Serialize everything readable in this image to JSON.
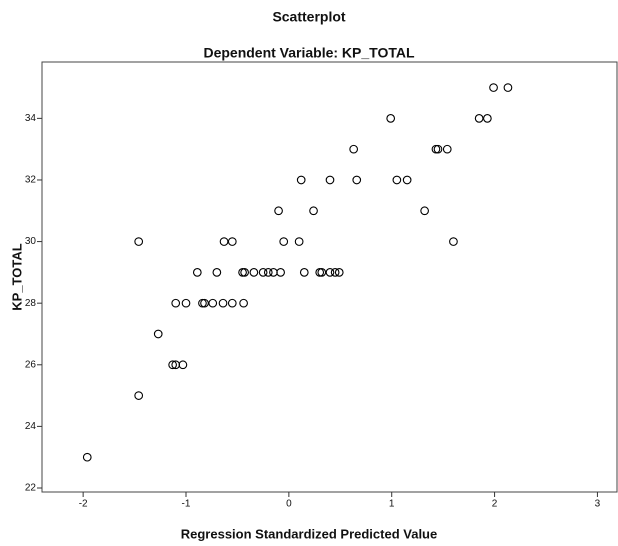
{
  "chart_data": {
    "type": "scatter",
    "title": "Scatterplot",
    "subtitle": "Dependent Variable: KP_TOTAL",
    "x_label": "Regression Standardized Predicted Value",
    "y_label": "KP_TOTAL",
    "xlim": [
      -2.4,
      3.2
    ],
    "ylim": [
      21.87,
      35.83
    ],
    "xticks": [
      -2,
      -1,
      0,
      1,
      2,
      3
    ],
    "yticks": [
      22,
      24,
      26,
      28,
      30,
      32,
      34
    ],
    "color": "#000000",
    "x": [
      -1.96,
      -1.46,
      -1.46,
      -1.27,
      -1.13,
      -1.1,
      -1.03,
      -1.1,
      -1.0,
      -0.89,
      -0.84,
      -0.82,
      -0.74,
      -0.64,
      -0.55,
      -0.44,
      -0.7,
      -0.63,
      -0.55,
      -0.45,
      -0.43,
      -0.34,
      -0.25,
      -0.2,
      -0.15,
      -0.08,
      -0.1,
      -0.05,
      0.1,
      0.12,
      0.15,
      0.24,
      0.3,
      0.32,
      0.4,
      0.45,
      0.49,
      0.4,
      0.63,
      0.66,
      0.99,
      1.05,
      1.15,
      1.32,
      1.43,
      1.45,
      1.54,
      1.6,
      1.85,
      1.93,
      1.99,
      2.13
    ],
    "values": [
      23,
      25,
      30,
      27,
      26,
      26,
      26,
      28,
      28,
      29,
      28,
      28,
      28,
      28,
      28,
      28,
      29,
      30,
      30,
      29,
      29,
      29,
      29,
      29,
      29,
      29,
      31,
      30,
      30,
      32,
      29,
      31,
      29,
      29,
      29,
      29,
      29,
      32,
      33,
      32,
      34,
      32,
      32,
      31,
      33,
      33,
      33,
      30,
      34,
      34,
      35,
      35
    ]
  }
}
